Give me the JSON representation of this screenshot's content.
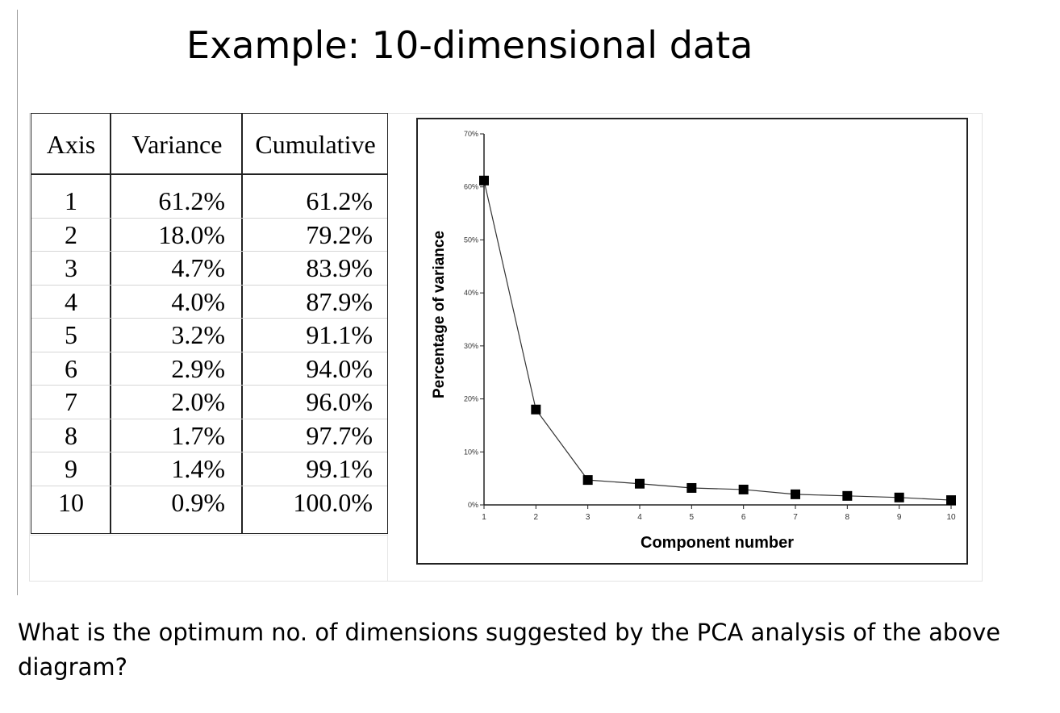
{
  "slide": {
    "title": "Example: 10-dimensional data",
    "question": "What is the optimum no. of dimensions suggested by the PCA analysis of the above diagram?"
  },
  "table": {
    "headers": [
      "Axis",
      "Variance",
      "Cumulative"
    ],
    "rows": [
      {
        "axis": "1",
        "variance": "61.2%",
        "cumulative": "61.2%"
      },
      {
        "axis": "2",
        "variance": "18.0%",
        "cumulative": "79.2%"
      },
      {
        "axis": "3",
        "variance": "4.7%",
        "cumulative": "83.9%"
      },
      {
        "axis": "4",
        "variance": "4.0%",
        "cumulative": "87.9%"
      },
      {
        "axis": "5",
        "variance": "3.2%",
        "cumulative": "91.1%"
      },
      {
        "axis": "6",
        "variance": "2.9%",
        "cumulative": "94.0%"
      },
      {
        "axis": "7",
        "variance": "2.0%",
        "cumulative": "96.0%"
      },
      {
        "axis": "8",
        "variance": "1.7%",
        "cumulative": "97.7%"
      },
      {
        "axis": "9",
        "variance": "1.4%",
        "cumulative": "99.1%"
      },
      {
        "axis": "10",
        "variance": "0.9%",
        "cumulative": "100.0%"
      }
    ]
  },
  "chart_data": {
    "type": "line",
    "title": "",
    "xlabel": "Component number",
    "ylabel": "Percentage of variance",
    "x": [
      1,
      2,
      3,
      4,
      5,
      6,
      7,
      8,
      9,
      10
    ],
    "x_tick_labels": [
      "1",
      "2",
      "3",
      "4",
      "5",
      "6",
      "7",
      "8",
      "9",
      "10"
    ],
    "y_tick_labels": [
      "0%",
      "10%",
      "20%",
      "30%",
      "40%",
      "50%",
      "60%",
      "70%"
    ],
    "y_ticks": [
      0,
      10,
      20,
      30,
      40,
      50,
      60,
      70
    ],
    "ylim": [
      0,
      70
    ],
    "xlim": [
      1,
      10
    ],
    "marker": "square",
    "grid": false,
    "series": [
      {
        "values": [
          61.2,
          18.0,
          4.7,
          4.0,
          3.2,
          2.9,
          2.0,
          1.7,
          1.4,
          0.9
        ]
      }
    ],
    "colors": {
      "line": "#333333",
      "marker": "#000000"
    }
  }
}
